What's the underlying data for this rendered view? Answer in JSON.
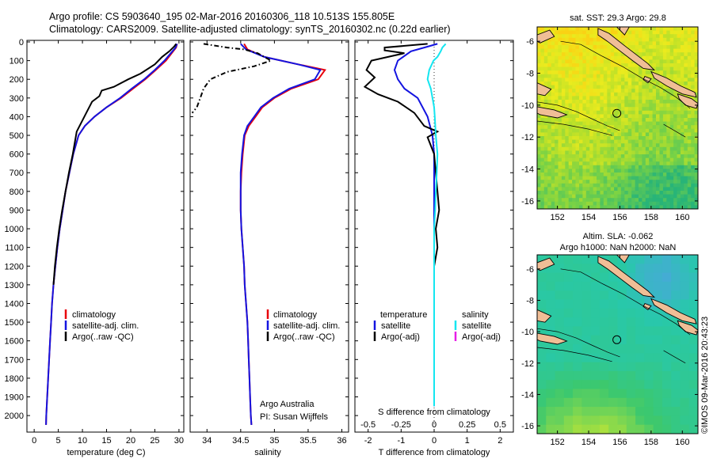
{
  "header": {
    "line1": "Argo profile: CS 5903640_195 02-Mar-2016 20160306_118 10.513S 155.805E",
    "line2": "Climatology: CARS2009. Satellite-adjusted climatology: synTS_20160302.nc (0.22d earlier)"
  },
  "side_stamp": "©IMOS 09-Mar-2016 20:43:23",
  "colors": {
    "climatology": "#e8000b",
    "satellite": "#1414e0",
    "argo": "#000000",
    "salinity_satellite": "#14e6f0",
    "argo_adj_salinity": "#e61ee6",
    "land": "#f0be96"
  },
  "chart_data": [
    {
      "type": "line",
      "id": "temperature",
      "xlabel": "temperature (deg C)",
      "ylabel": "",
      "xlim": [
        -1.5,
        31
      ],
      "ylim": [
        0,
        2080
      ],
      "y_inverted": true,
      "xticks": [
        0,
        5,
        10,
        15,
        20,
        25,
        30
      ],
      "yticks": [
        0,
        100,
        200,
        300,
        400,
        500,
        600,
        700,
        800,
        900,
        1000,
        1100,
        1200,
        1300,
        1400,
        1500,
        1600,
        1700,
        1800,
        1900,
        2000
      ],
      "legend": [
        "climatology",
        "satellite-adj. clim.",
        "Argo(..raw -QC)"
      ],
      "series": [
        {
          "name": "climatology",
          "style": "solid",
          "points": [
            [
              29.6,
              10
            ],
            [
              29.4,
              30
            ],
            [
              28.5,
              60
            ],
            [
              27.3,
              100
            ],
            [
              25.2,
              150
            ],
            [
              23,
              200
            ],
            [
              20.5,
              250
            ],
            [
              18,
              300
            ],
            [
              15,
              350
            ],
            [
              12.5,
              400
            ],
            [
              10.5,
              450
            ],
            [
              9.2,
              500
            ],
            [
              8.1,
              600
            ],
            [
              7.3,
              700
            ],
            [
              6.5,
              800
            ],
            [
              5.9,
              900
            ],
            [
              5.3,
              1000
            ],
            [
              4.8,
              1100
            ],
            [
              4.4,
              1200
            ],
            [
              4.0,
              1300
            ],
            [
              3.7,
              1400
            ],
            [
              3.5,
              1500
            ],
            [
              3.3,
              1600
            ],
            [
              3.1,
              1700
            ],
            [
              2.9,
              1800
            ],
            [
              2.7,
              1900
            ],
            [
              2.5,
              2000
            ],
            [
              2.45,
              2050
            ]
          ]
        },
        {
          "name": "satellite-adj. clim.",
          "style": "solid",
          "points": [
            [
              29.6,
              10
            ],
            [
              29.3,
              30
            ],
            [
              28.3,
              60
            ],
            [
              27,
              100
            ],
            [
              25,
              150
            ],
            [
              22.8,
              200
            ],
            [
              20.2,
              250
            ],
            [
              17.8,
              300
            ],
            [
              15,
              350
            ],
            [
              12.5,
              400
            ],
            [
              10.5,
              450
            ],
            [
              9.2,
              500
            ],
            [
              8.1,
              600
            ],
            [
              7.3,
              700
            ],
            [
              6.5,
              800
            ],
            [
              5.9,
              900
            ],
            [
              5.3,
              1000
            ],
            [
              4.8,
              1100
            ],
            [
              4.4,
              1200
            ],
            [
              4.0,
              1300
            ],
            [
              3.7,
              1400
            ],
            [
              3.5,
              1500
            ],
            [
              3.3,
              1600
            ],
            [
              3.1,
              1700
            ],
            [
              2.9,
              1800
            ],
            [
              2.7,
              1900
            ],
            [
              2.5,
              2000
            ],
            [
              2.45,
              2050
            ]
          ]
        },
        {
          "name": "Argo(..raw -QC)",
          "style": "solid",
          "points": [
            [
              29.4,
              10
            ],
            [
              29,
              25
            ],
            [
              28,
              50
            ],
            [
              26.5,
              80
            ],
            [
              25,
              120
            ],
            [
              22,
              170
            ],
            [
              19.5,
              200
            ],
            [
              16.5,
              240
            ],
            [
              14,
              260
            ],
            [
              13.5,
              290
            ],
            [
              12,
              320
            ],
            [
              10.8,
              380
            ],
            [
              10,
              420
            ],
            [
              9.2,
              460
            ],
            [
              8.8,
              480
            ],
            [
              8,
              600
            ],
            [
              7.2,
              700
            ],
            [
              6.5,
              800
            ],
            [
              5.8,
              900
            ],
            [
              5.2,
              1000
            ],
            [
              4.7,
              1100
            ],
            [
              4.3,
              1200
            ],
            [
              4.0,
              1300
            ]
          ]
        }
      ]
    },
    {
      "type": "line",
      "id": "salinity",
      "xlabel": "salinity",
      "ylabel": "",
      "xlim": [
        33.75,
        36.1
      ],
      "ylim": [
        0,
        2080
      ],
      "y_inverted": true,
      "xticks": [
        34,
        34.5,
        35,
        35.5,
        36
      ],
      "xtick_labels": [
        "34",
        "34.5",
        "35",
        "35.5",
        "36"
      ],
      "legend": [
        "climatology",
        "satellite-adj. clim.",
        "Argo(..raw -QC)"
      ],
      "annotation": [
        "Argo Australia",
        "PI: Susan Wijffels"
      ],
      "series": [
        {
          "name": "climatology",
          "style": "solid",
          "points": [
            [
              34.55,
              10
            ],
            [
              34.6,
              40
            ],
            [
              34.85,
              80
            ],
            [
              35.35,
              120
            ],
            [
              35.75,
              150
            ],
            [
              35.65,
              200
            ],
            [
              35.25,
              250
            ],
            [
              35.0,
              300
            ],
            [
              34.82,
              350
            ],
            [
              34.72,
              400
            ],
            [
              34.62,
              450
            ],
            [
              34.56,
              500
            ],
            [
              34.53,
              600
            ],
            [
              34.51,
              700
            ],
            [
              34.5,
              800
            ],
            [
              34.5,
              900
            ],
            [
              34.51,
              1000
            ],
            [
              34.53,
              1100
            ],
            [
              34.55,
              1200
            ],
            [
              34.56,
              1300
            ],
            [
              34.58,
              1400
            ],
            [
              34.6,
              1500
            ],
            [
              34.61,
              1600
            ],
            [
              34.62,
              1700
            ],
            [
              34.63,
              1800
            ],
            [
              34.64,
              1900
            ],
            [
              34.65,
              2000
            ],
            [
              34.66,
              2050
            ]
          ]
        },
        {
          "name": "satellite-adj. clim.",
          "style": "solid",
          "points": [
            [
              34.5,
              10
            ],
            [
              34.58,
              40
            ],
            [
              34.85,
              80
            ],
            [
              35.35,
              120
            ],
            [
              35.68,
              150
            ],
            [
              35.6,
              200
            ],
            [
              35.22,
              250
            ],
            [
              34.98,
              300
            ],
            [
              34.8,
              350
            ],
            [
              34.7,
              400
            ],
            [
              34.6,
              450
            ],
            [
              34.55,
              500
            ],
            [
              34.52,
              600
            ],
            [
              34.5,
              700
            ],
            [
              34.5,
              800
            ],
            [
              34.5,
              900
            ],
            [
              34.51,
              1000
            ],
            [
              34.53,
              1100
            ],
            [
              34.55,
              1200
            ],
            [
              34.56,
              1300
            ],
            [
              34.58,
              1400
            ],
            [
              34.6,
              1500
            ],
            [
              34.61,
              1600
            ],
            [
              34.62,
              1700
            ],
            [
              34.63,
              1800
            ],
            [
              34.64,
              1900
            ],
            [
              34.65,
              2000
            ],
            [
              34.66,
              2050
            ]
          ]
        },
        {
          "name": "Argo(..raw -QC)",
          "style": "dashdot",
          "points": [
            [
              33.95,
              10
            ],
            [
              34.3,
              30
            ],
            [
              34.55,
              40
            ],
            [
              34.75,
              60
            ],
            [
              34.95,
              100
            ],
            [
              34.7,
              130
            ],
            [
              34.3,
              160
            ],
            [
              34.05,
              200
            ],
            [
              33.95,
              250
            ],
            [
              33.9,
              300
            ],
            [
              33.85,
              350
            ],
            [
              33.78,
              380
            ]
          ]
        }
      ]
    },
    {
      "type": "line",
      "id": "difference",
      "xlabel": "T difference from climatology",
      "xlabel_top": "S difference from climatology",
      "xlim": [
        -2.4,
        2.4
      ],
      "ylim": [
        0,
        2080
      ],
      "y_inverted": true,
      "xticks": [
        -2,
        -1,
        0,
        1,
        2
      ],
      "xtick_labels": [
        "-2",
        "-1",
        "0",
        "1",
        "2"
      ],
      "s_xticks": [
        -0.5,
        -0.25,
        0,
        0.25,
        0.5
      ],
      "s_xtick_labels": [
        "-0.5",
        "-0.25",
        "0",
        "0.25",
        "0.5"
      ],
      "legend_left_title": "temperature",
      "legend_right_title": "salinity",
      "legend_left": [
        "satellite",
        "Argo(-adj)"
      ],
      "legend_right": [
        "satellite",
        "Argo(-adj)"
      ],
      "series": [
        {
          "name": "temperature satellite",
          "style": "solid",
          "points": [
            [
              0.1,
              10
            ],
            [
              -0.3,
              30
            ],
            [
              -0.7,
              50
            ],
            [
              -1.1,
              100
            ],
            [
              -1.2,
              150
            ],
            [
              -1.1,
              200
            ],
            [
              -0.9,
              250
            ],
            [
              -0.5,
              300
            ],
            [
              -0.2,
              400
            ],
            [
              -0.05,
              500
            ],
            [
              0,
              600
            ],
            [
              0,
              800
            ],
            [
              0,
              1000
            ],
            [
              0,
              1200
            ],
            [
              0,
              1400
            ],
            [
              0,
              1600
            ],
            [
              0,
              1800
            ],
            [
              0,
              1950
            ]
          ]
        },
        {
          "name": "temperature Argo(-adj)",
          "style": "solid",
          "points": [
            [
              -0.2,
              10
            ],
            [
              -1.5,
              30
            ],
            [
              -1.5,
              45
            ],
            [
              -0.9,
              60
            ],
            [
              -1.9,
              100
            ],
            [
              -2.05,
              150
            ],
            [
              -1.8,
              190
            ],
            [
              -2.1,
              240
            ],
            [
              -1.7,
              280
            ],
            [
              -1.1,
              320
            ],
            [
              -0.6,
              380
            ],
            [
              -0.3,
              450
            ],
            [
              0.1,
              480
            ],
            [
              -0.2,
              510
            ],
            [
              0,
              600
            ],
            [
              0.1,
              800
            ],
            [
              0.15,
              900
            ],
            [
              0.05,
              1000
            ],
            [
              0.1,
              1100
            ],
            [
              0,
              1200
            ]
          ]
        },
        {
          "name": "salinity satellite",
          "style": "solid",
          "points": [
            [
              0.35,
              10
            ],
            [
              0.25,
              30
            ],
            [
              0.2,
              50
            ],
            [
              0.1,
              80
            ],
            [
              -0.02,
              100
            ],
            [
              -0.15,
              150
            ],
            [
              -0.2,
              200
            ],
            [
              -0.1,
              250
            ],
            [
              -0.05,
              300
            ],
            [
              0,
              350
            ],
            [
              0.02,
              400
            ],
            [
              0.05,
              500
            ],
            [
              0.1,
              600
            ],
            [
              0.08,
              700
            ],
            [
              0.05,
              800
            ],
            [
              0.03,
              900
            ],
            [
              0,
              1000
            ],
            [
              0,
              1200
            ],
            [
              0,
              1400
            ],
            [
              0,
              1600
            ],
            [
              0,
              1800
            ],
            [
              0,
              1950
            ]
          ]
        }
      ]
    },
    {
      "type": "heatmap",
      "id": "sst-map",
      "title": "sat. SST: 29.3 Argo: 29.8",
      "xticks": [
        152,
        154,
        156,
        158,
        160
      ],
      "yticks": [
        -6,
        -8,
        -10,
        -12,
        -14,
        -16
      ],
      "xlim": [
        150.7,
        161
      ],
      "ylim": [
        -16.5,
        -5.1
      ],
      "profile_location": [
        155.805,
        -10.513
      ]
    },
    {
      "type": "heatmap",
      "id": "sla-map",
      "title": "Altim. SLA: -0.062",
      "subtitle": "Argo h1000: NaN h2000: NaN",
      "xticks": [
        152,
        154,
        156,
        158,
        160
      ],
      "yticks": [
        -6,
        -8,
        -10,
        -12,
        -14,
        -16
      ],
      "xlim": [
        150.7,
        161
      ],
      "ylim": [
        -16.5,
        -5.1
      ],
      "profile_location": [
        155.805,
        -10.513
      ]
    }
  ]
}
